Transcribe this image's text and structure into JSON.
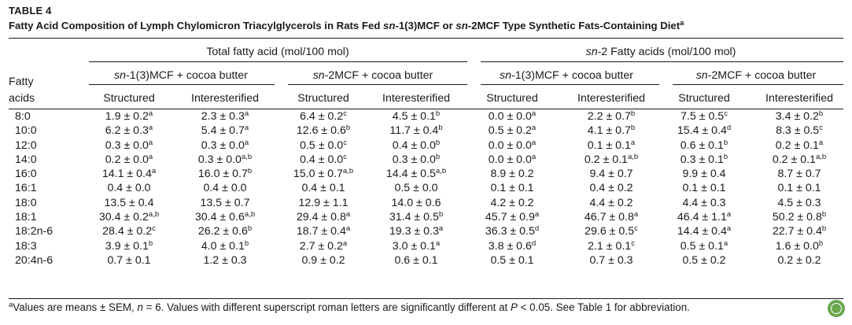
{
  "table": {
    "label": "TABLE 4",
    "title_pre": "Fatty Acid Composition of Lymph Chylomicron Triacylglycerols in Rats Fed ",
    "title_it1": "sn",
    "title_mid1": "-1(3)MCF or ",
    "title_it2": "sn",
    "title_mid2": "-2MCF Type Synthetic Fats-Containing Diet",
    "title_sup": "a"
  },
  "headers": {
    "stub_line1": "Fatty",
    "stub_line2": "acids",
    "group_total": "Total fatty acid (mol/100 mol)",
    "group_sn2_it": "sn",
    "group_sn2_rest": "-2 Fatty acids (mol/100 mol)",
    "sub1_it": "sn",
    "sub1_rest": "-1(3)MCF + cocoa butter",
    "sub2_it": "sn",
    "sub2_rest": "-2MCF + cocoa butter",
    "sub3_it": "sn",
    "sub3_rest": "-1(3)MCF + cocoa butter",
    "sub4_it": "sn",
    "sub4_rest": "-2MCF + cocoa butter",
    "columns": [
      "Structured",
      "Interesterified",
      "Structured",
      "Interesterified",
      "Structured",
      "Interesterified",
      "Structured",
      "Interesterified"
    ]
  },
  "rows": [
    {
      "fa": "8:0",
      "cells": [
        [
          "1.9 ± 0.2",
          "a"
        ],
        [
          "2.3 ± 0.3",
          "a"
        ],
        [
          "6.4 ± 0.2",
          "c"
        ],
        [
          "4.5 ± 0.1",
          "b"
        ],
        [
          "0.0 ± 0.0",
          "a"
        ],
        [
          "2.2 ± 0.7",
          "b"
        ],
        [
          "7.5 ± 0.5",
          "c"
        ],
        [
          "3.4 ± 0.2",
          "b"
        ]
      ]
    },
    {
      "fa": "10:0",
      "cells": [
        [
          "6.2 ± 0.3",
          "a"
        ],
        [
          "5.4 ± 0.7",
          "a"
        ],
        [
          "12.6 ± 0.6",
          "b"
        ],
        [
          "11.7 ± 0.4",
          "b"
        ],
        [
          "0.5 ± 0.2",
          "a"
        ],
        [
          "4.1 ± 0.7",
          "b"
        ],
        [
          "15.4 ± 0.4",
          "d"
        ],
        [
          "8.3 ± 0.5",
          "c"
        ]
      ]
    },
    {
      "fa": "12:0",
      "cells": [
        [
          "0.3 ± 0.0",
          "a"
        ],
        [
          "0.3 ± 0.0",
          "a"
        ],
        [
          "0.5 ± 0.0",
          "c"
        ],
        [
          "0.4 ± 0.0",
          "b"
        ],
        [
          "0.0 ± 0.0",
          "a"
        ],
        [
          "0.1 ± 0.1",
          "a"
        ],
        [
          "0.6 ± 0.1",
          "b"
        ],
        [
          "0.2 ± 0.1",
          "a"
        ]
      ]
    },
    {
      "fa": "14:0",
      "cells": [
        [
          "0.2 ± 0.0",
          "a"
        ],
        [
          "0.3 ± 0.0",
          "a,b"
        ],
        [
          "0.4 ± 0.0",
          "c"
        ],
        [
          "0.3 ± 0.0",
          "b"
        ],
        [
          "0.0 ± 0.0",
          "a"
        ],
        [
          "0.2 ± 0.1",
          "a,b"
        ],
        [
          "0.3 ± 0.1",
          "b"
        ],
        [
          "0.2 ± 0.1",
          "a,b"
        ]
      ]
    },
    {
      "fa": "16:0",
      "cells": [
        [
          "14.1 ± 0.4",
          "a"
        ],
        [
          "16.0 ± 0.7",
          "b"
        ],
        [
          "15.0 ± 0.7",
          "a,b"
        ],
        [
          "14.4 ± 0.5",
          "a,b"
        ],
        [
          "8.9 ± 0.2",
          ""
        ],
        [
          "9.4 ± 0.7",
          ""
        ],
        [
          "9.9 ± 0.4",
          ""
        ],
        [
          "8.7 ± 0.7",
          ""
        ]
      ]
    },
    {
      "fa": "16:1",
      "cells": [
        [
          "0.4 ± 0.0",
          ""
        ],
        [
          "0.4 ± 0.0",
          ""
        ],
        [
          "0.4 ± 0.1",
          ""
        ],
        [
          "0.5 ± 0.0",
          ""
        ],
        [
          "0.1 ± 0.1",
          ""
        ],
        [
          "0.4 ± 0.2",
          ""
        ],
        [
          "0.1 ± 0.1",
          ""
        ],
        [
          "0.1 ± 0.1",
          ""
        ]
      ]
    },
    {
      "fa": "18:0",
      "cells": [
        [
          "13.5 ± 0.4",
          ""
        ],
        [
          "13.5 ± 0.7",
          ""
        ],
        [
          "12.9 ± 1.1",
          ""
        ],
        [
          "14.0 ± 0.6",
          ""
        ],
        [
          "4.2 ± 0.2",
          ""
        ],
        [
          "4.4 ± 0.2",
          ""
        ],
        [
          "4.4 ± 0.3",
          ""
        ],
        [
          "4.5 ± 0.3",
          ""
        ]
      ]
    },
    {
      "fa": "18:1",
      "cells": [
        [
          "30.4 ± 0.2",
          "a,b"
        ],
        [
          "30.4 ± 0.6",
          "a,b"
        ],
        [
          "29.4 ± 0.8",
          "a"
        ],
        [
          "31.4 ± 0.5",
          "b"
        ],
        [
          "45.7 ± 0.9",
          "a"
        ],
        [
          "46.7 ± 0.8",
          "a"
        ],
        [
          "46.4 ± 1.1",
          "a"
        ],
        [
          "50.2 ± 0.8",
          "b"
        ]
      ]
    },
    {
      "fa": "18:2n-6",
      "cells": [
        [
          "28.4 ± 0.2",
          "c"
        ],
        [
          "26.2 ± 0.6",
          "b"
        ],
        [
          "18.7 ± 0.4",
          "a"
        ],
        [
          "19.3 ± 0.3",
          "a"
        ],
        [
          "36.3 ± 0.5",
          "d"
        ],
        [
          "29.6 ± 0.5",
          "c"
        ],
        [
          "14.4 ± 0.4",
          "a"
        ],
        [
          "22.7 ± 0.4",
          "b"
        ]
      ]
    },
    {
      "fa": "18:3",
      "cells": [
        [
          "3.9 ± 0.1",
          "b"
        ],
        [
          "4.0 ± 0.1",
          "b"
        ],
        [
          "2.7 ± 0.2",
          "a"
        ],
        [
          "3.0 ± 0.1",
          "a"
        ],
        [
          "3.8 ± 0.6",
          "d"
        ],
        [
          "2.1 ± 0.1",
          "c"
        ],
        [
          "0.5 ± 0.1",
          "a"
        ],
        [
          "1.6 ± 0.0",
          "b"
        ]
      ]
    },
    {
      "fa": "20:4n-6",
      "cells": [
        [
          "0.7 ± 0.1",
          ""
        ],
        [
          "1.2 ± 0.3",
          ""
        ],
        [
          "0.9 ± 0.2",
          ""
        ],
        [
          "0.6 ± 0.1",
          ""
        ],
        [
          "0.5 ± 0.1",
          ""
        ],
        [
          "0.7 ± 0.3",
          ""
        ],
        [
          "0.5 ± 0.2",
          ""
        ],
        [
          "0.2 ± 0.2",
          ""
        ]
      ]
    }
  ],
  "footnote": {
    "sup": "a",
    "p1": "Values are means ± SEM, ",
    "n_it": "n",
    "p2": " = 6. Values with different superscript roman letters are significantly different at ",
    "P_it": "P",
    "p3": " < 0.05. See Table 1 for abbreviation."
  },
  "badge_icon": "publisher-logo-icon"
}
